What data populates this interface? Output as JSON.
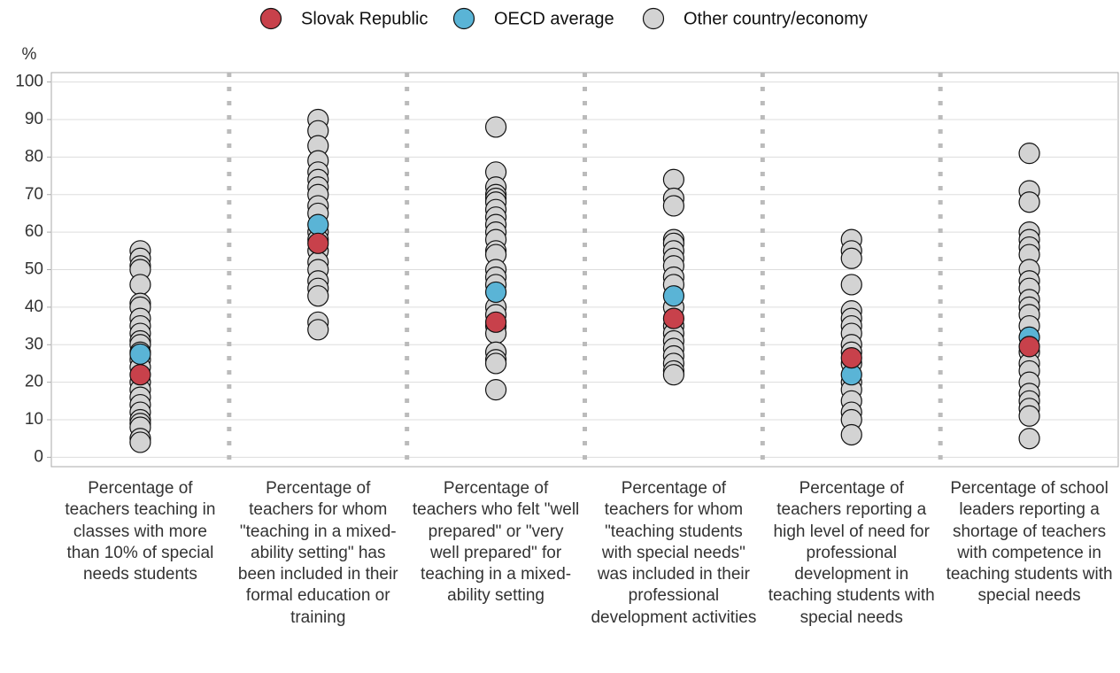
{
  "chart_data": {
    "type": "strip",
    "y_label": "%",
    "categories": [
      "Percentage of teachers teaching in classes with more than 10% of special needs students",
      "Percentage of teachers for whom \"teaching in a mixed-ability setting\" has been included in their formal education or training",
      "Percentage of teachers who felt \"well prepared\" or \"very well prepared\" for teaching in a mixed-ability setting",
      "Percentage of teachers for whom \"teaching students with special needs\" was included in their professional development activities",
      "Percentage of teachers reporting a high level of need for professional development in teaching students with special needs",
      "Percentage of school leaders reporting a shortage of teachers with competence in teaching students with special needs"
    ],
    "series": [
      {
        "name": "Slovak Republic",
        "color": "#c8414b",
        "values": [
          22,
          57,
          36,
          37,
          26.5,
          29.5
        ]
      },
      {
        "name": "OECD average",
        "color": "#5ab4d6",
        "values": [
          27.5,
          62,
          44,
          43,
          22,
          32
        ]
      },
      {
        "name": "Other country/economy",
        "color": "#d3d3d3",
        "values": [
          [
            55,
            53,
            51,
            50,
            46,
            41,
            40,
            37,
            35,
            33,
            31,
            30,
            28,
            26,
            24,
            20,
            18,
            16,
            14,
            12,
            10,
            9,
            8,
            5,
            4
          ],
          [
            90,
            87,
            83,
            79,
            76,
            74,
            72,
            70,
            67,
            65,
            60,
            58,
            55,
            52,
            50,
            47,
            45,
            43,
            36,
            34
          ],
          [
            88,
            76,
            72,
            70,
            69,
            68,
            66,
            64,
            62,
            60,
            58,
            55,
            54,
            50,
            48,
            46,
            40,
            38,
            35,
            33,
            28,
            26,
            25,
            18
          ],
          [
            74,
            69,
            67,
            58,
            57,
            55,
            53,
            51,
            48,
            46,
            40,
            35,
            33,
            31,
            29,
            27,
            25,
            23,
            22
          ],
          [
            58,
            55,
            53,
            46,
            39,
            37,
            35,
            33,
            30,
            28,
            25,
            20,
            18,
            15,
            12,
            10,
            6
          ],
          [
            81,
            71,
            68,
            60,
            58,
            56,
            54,
            50,
            47,
            45,
            42,
            40,
            38,
            35,
            28,
            25,
            23,
            20,
            17,
            15,
            13,
            11,
            5
          ]
        ]
      }
    ],
    "ylim": [
      -2.5,
      102.5
    ],
    "yticks": [
      0,
      10,
      20,
      30,
      40,
      50,
      60,
      70,
      80,
      90,
      100
    ],
    "grid": true
  }
}
